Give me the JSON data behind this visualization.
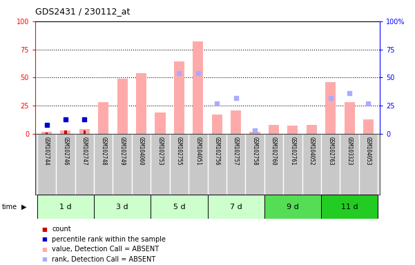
{
  "title": "GDS2431 / 230112_at",
  "samples": [
    "GSM102744",
    "GSM102746",
    "GSM102747",
    "GSM102748",
    "GSM102749",
    "GSM104060",
    "GSM102753",
    "GSM102755",
    "GSM104051",
    "GSM102756",
    "GSM102757",
    "GSM102758",
    "GSM102760",
    "GSM102761",
    "GSM104052",
    "GSM102763",
    "GSM103323",
    "GSM104053"
  ],
  "time_groups": [
    {
      "label": "1 d",
      "start": 0,
      "end": 3,
      "color": "#ccffcc"
    },
    {
      "label": "3 d",
      "start": 3,
      "end": 6,
      "color": "#ccffcc"
    },
    {
      "label": "5 d",
      "start": 6,
      "end": 9,
      "color": "#ccffcc"
    },
    {
      "label": "7 d",
      "start": 9,
      "end": 12,
      "color": "#ccffcc"
    },
    {
      "label": "9 d",
      "start": 12,
      "end": 15,
      "color": "#55dd55"
    },
    {
      "label": "11 d",
      "start": 15,
      "end": 18,
      "color": "#22cc22"
    }
  ],
  "absent_bar_values": [
    2,
    3,
    4,
    28,
    49,
    54,
    19,
    64,
    82,
    17,
    21,
    2,
    8,
    7,
    8,
    46,
    28,
    13
  ],
  "absent_rank_values": [
    null,
    null,
    null,
    null,
    null,
    null,
    null,
    54,
    54,
    27,
    32,
    3,
    null,
    null,
    null,
    32,
    36,
    27
  ],
  "count_values": [
    1,
    3,
    3,
    null,
    null,
    null,
    null,
    null,
    null,
    null,
    null,
    null,
    null,
    null,
    null,
    null,
    null,
    null
  ],
  "pct_rank_values": [
    8,
    13,
    13,
    null,
    null,
    null,
    null,
    null,
    null,
    null,
    null,
    null,
    null,
    null,
    null,
    null,
    null,
    null
  ],
  "ylim": [
    0,
    100
  ],
  "dotted_lines": [
    25,
    50,
    75
  ],
  "bar_color_absent": "#ffaaaa",
  "rank_color_absent": "#aaaaff",
  "count_color": "#cc0000",
  "pct_rank_color": "#0000cc"
}
